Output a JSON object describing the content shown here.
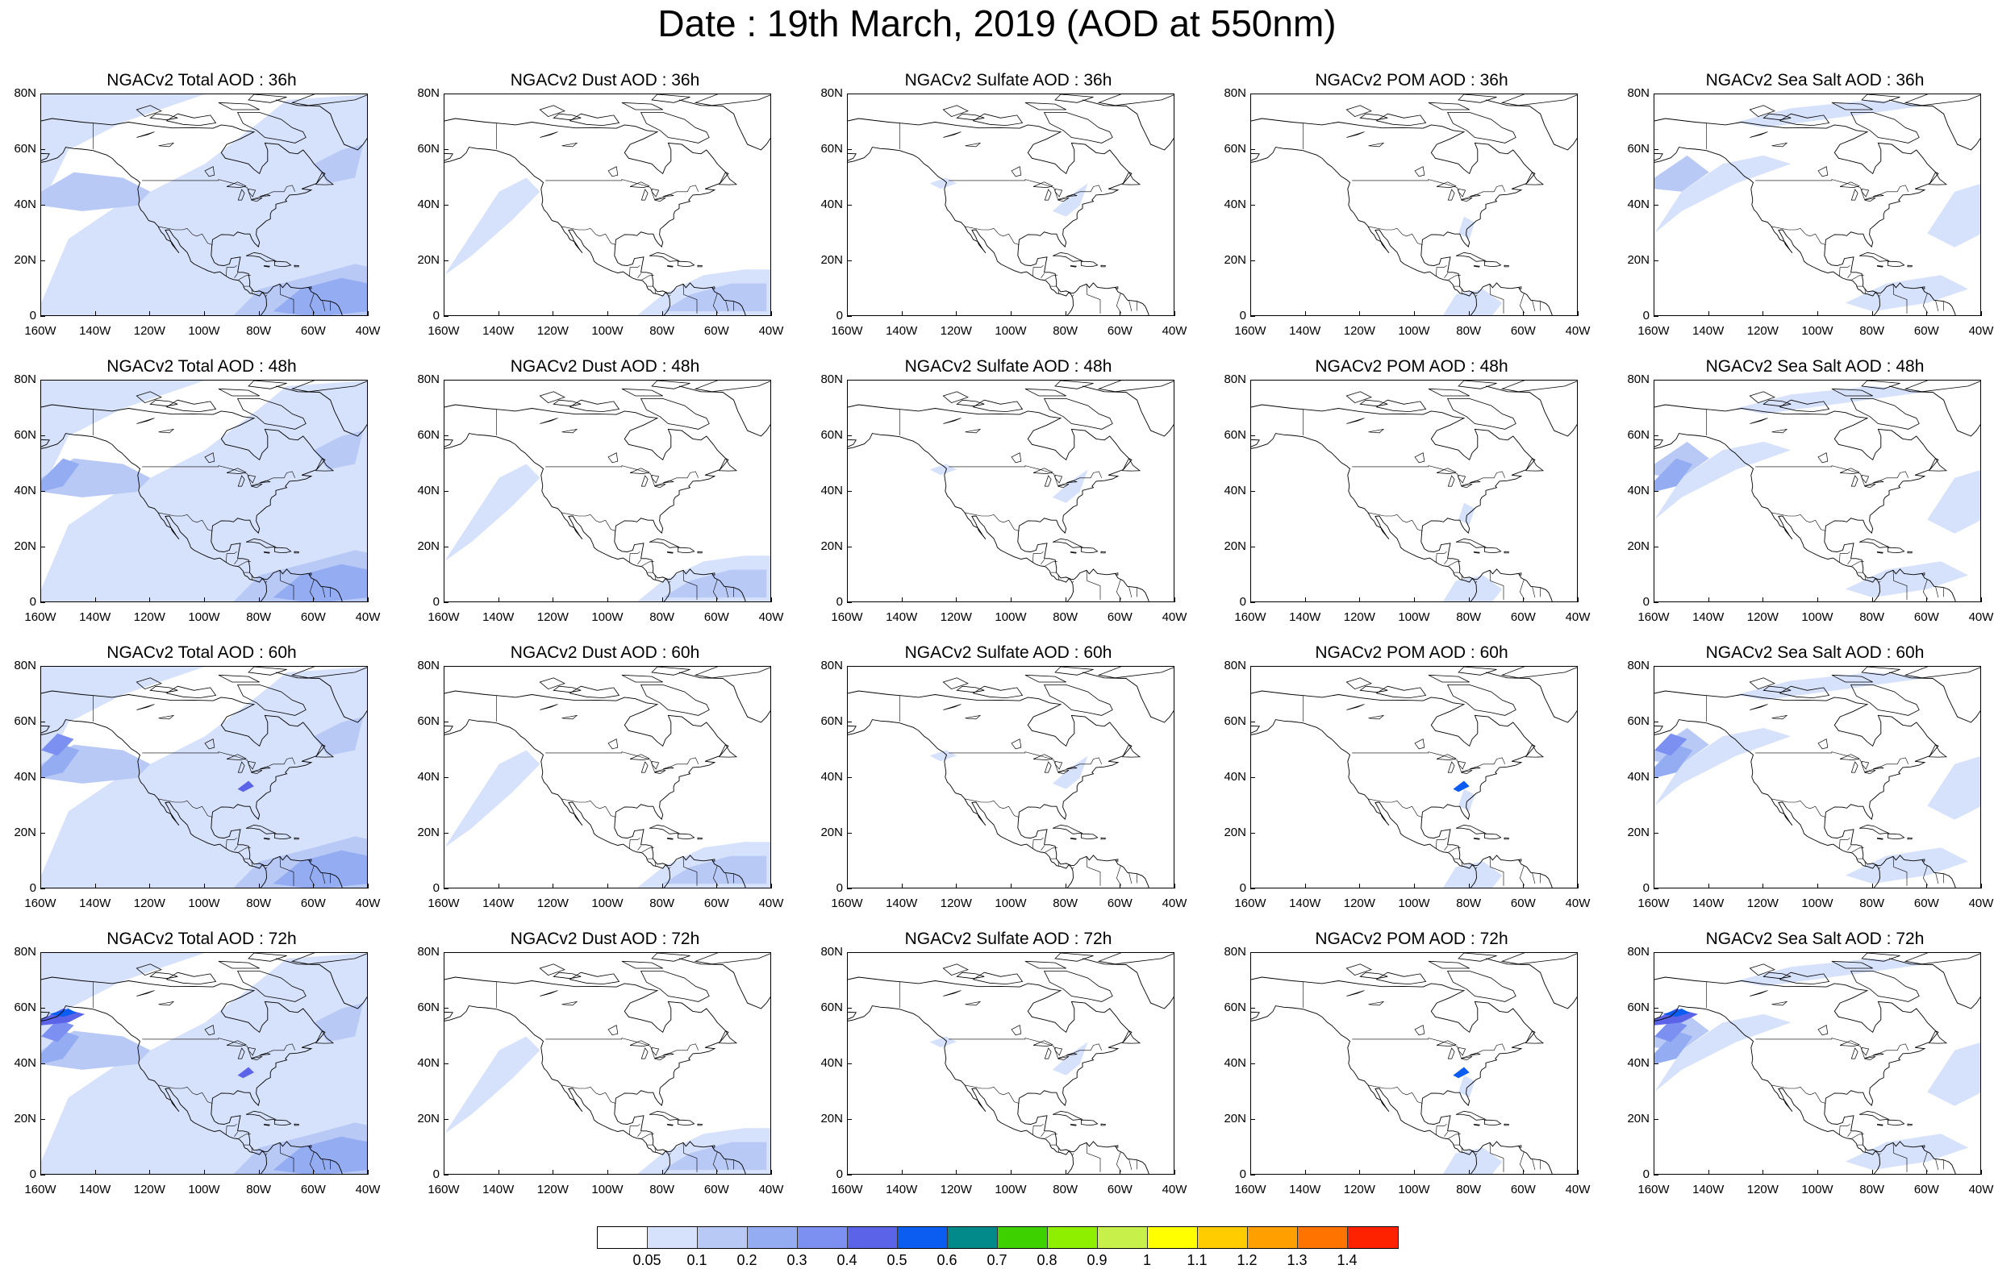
{
  "title": "Date : 19th March, 2019 (AOD at 550nm)",
  "axes": {
    "y_labels": [
      "80N",
      "60N",
      "40N",
      "20N",
      "0"
    ],
    "x_labels": [
      "160W",
      "140W",
      "120W",
      "100W",
      "80W",
      "60W",
      "40W"
    ],
    "lon_range": [
      -160,
      -40
    ],
    "lat_range": [
      0,
      80
    ]
  },
  "panels": [
    {
      "title": "NGACv2 Total AOD : 36h",
      "species": "total",
      "hour": 36
    },
    {
      "title": "NGACv2 Dust AOD : 36h",
      "species": "dust",
      "hour": 36
    },
    {
      "title": "NGACv2 Sulfate AOD : 36h",
      "species": "sulfate",
      "hour": 36
    },
    {
      "title": "NGACv2 POM AOD : 36h",
      "species": "pom",
      "hour": 36
    },
    {
      "title": "NGACv2 Sea Salt AOD : 36h",
      "species": "seasalt",
      "hour": 36
    },
    {
      "title": "NGACv2 Total AOD : 48h",
      "species": "total",
      "hour": 48
    },
    {
      "title": "NGACv2 Dust AOD : 48h",
      "species": "dust",
      "hour": 48
    },
    {
      "title": "NGACv2 Sulfate AOD : 48h",
      "species": "sulfate",
      "hour": 48
    },
    {
      "title": "NGACv2 POM AOD : 48h",
      "species": "pom",
      "hour": 48
    },
    {
      "title": "NGACv2 Sea Salt AOD : 48h",
      "species": "seasalt",
      "hour": 48
    },
    {
      "title": "NGACv2 Total AOD : 60h",
      "species": "total",
      "hour": 60
    },
    {
      "title": "NGACv2 Dust AOD : 60h",
      "species": "dust",
      "hour": 60
    },
    {
      "title": "NGACv2 Sulfate AOD : 60h",
      "species": "sulfate",
      "hour": 60
    },
    {
      "title": "NGACv2 POM AOD : 60h",
      "species": "pom",
      "hour": 60
    },
    {
      "title": "NGACv2 Sea Salt AOD : 60h",
      "species": "seasalt",
      "hour": 60
    },
    {
      "title": "NGACv2 Total AOD : 72h",
      "species": "total",
      "hour": 72
    },
    {
      "title": "NGACv2 Dust AOD : 72h",
      "species": "dust",
      "hour": 72
    },
    {
      "title": "NGACv2 Sulfate AOD : 72h",
      "species": "sulfate",
      "hour": 72
    },
    {
      "title": "NGACv2 POM AOD : 72h",
      "species": "pom",
      "hour": 72
    },
    {
      "title": "NGACv2 Sea Salt  AOD : 72h",
      "species": "seasalt",
      "hour": 72
    }
  ],
  "colorbar": {
    "colors": [
      "#ffffff",
      "#d6e1fb",
      "#b9c9f6",
      "#94acf2",
      "#7b90f0",
      "#5b64e8",
      "#0b5cf0",
      "#028a8a",
      "#3fd000",
      "#8ef000",
      "#c8f04a",
      "#ffff00",
      "#ffcc00",
      "#ff9f00",
      "#ff7300",
      "#ff2200"
    ],
    "labels": [
      "0.05",
      "0.1",
      "0.2",
      "0.3",
      "0.4",
      "0.5",
      "0.6",
      "0.7",
      "0.8",
      "0.9",
      "1",
      "1.1",
      "1.2",
      "1.3",
      "1.4"
    ]
  },
  "shading_colors": {
    "light": "#d6e1fb",
    "mid": "#b9c9f6",
    "strong": "#94acf2",
    "stronger": "#7b90f0",
    "peak": "#5b64e8",
    "deep": "#0b5cf0",
    "teal": "#028a8a"
  }
}
